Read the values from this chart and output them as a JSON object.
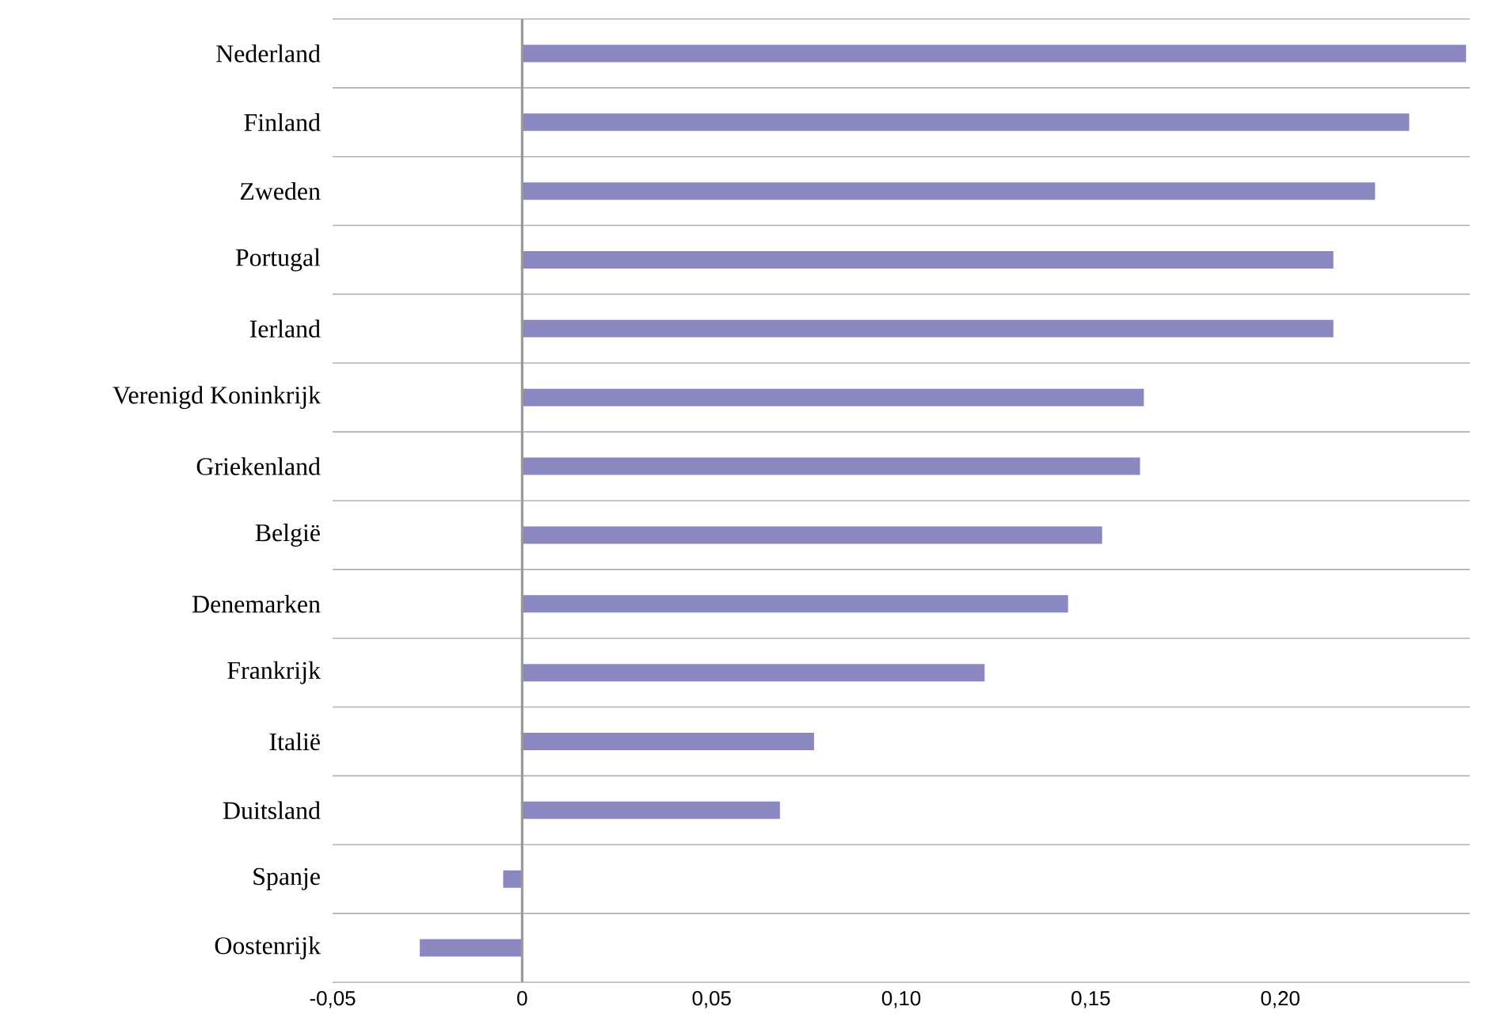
{
  "chart_data": {
    "type": "bar",
    "orientation": "horizontal",
    "categories": [
      "Nederland",
      "Finland",
      "Zweden",
      "Portugal",
      "Ierland",
      "Verenigd Koninkrijk",
      "Griekenland",
      "België",
      "Denemarken",
      "Frankrijk",
      "Italië",
      "Duitsland",
      "Spanje",
      "Oostenrijk"
    ],
    "values": [
      0.249,
      0.234,
      0.225,
      0.214,
      0.214,
      0.164,
      0.163,
      0.153,
      0.144,
      0.122,
      0.077,
      0.068,
      -0.005,
      -0.027
    ],
    "color": "#8b87c0",
    "xlim": [
      -0.05,
      0.25
    ],
    "xticks": [
      {
        "value": -0.05,
        "label": "-0,05"
      },
      {
        "value": 0,
        "label": "0"
      },
      {
        "value": 0.05,
        "label": "0,05"
      },
      {
        "value": 0.1,
        "label": "0,10"
      },
      {
        "value": 0.15,
        "label": "0,15"
      },
      {
        "value": 0.2,
        "label": "0,20"
      }
    ],
    "grid": "y"
  }
}
